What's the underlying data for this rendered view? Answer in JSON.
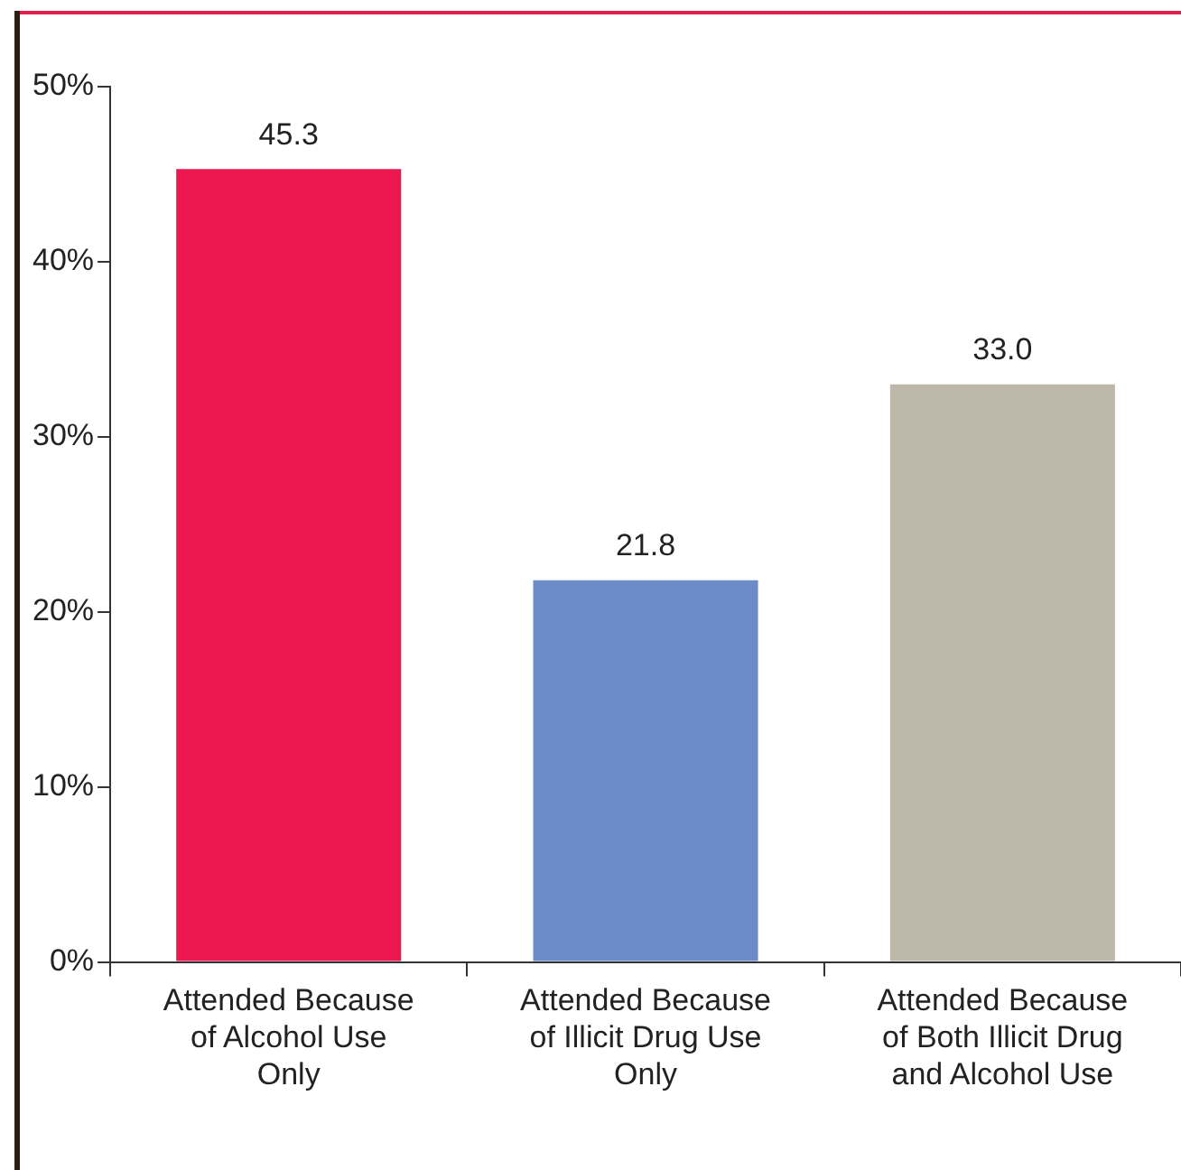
{
  "chart_data": {
    "type": "bar",
    "categories": [
      "Attended Because of Alcohol Use Only",
      "Attended Because of Illicit Drug Use Only",
      "Attended Because of Both Illicit Drug and Alcohol Use"
    ],
    "values": [
      45.3,
      21.8,
      33.0
    ],
    "colors": [
      "#ec174f",
      "#6b8cc6",
      "#bdb7a9"
    ],
    "value_labels": [
      "45.3",
      "21.8",
      "33.0"
    ],
    "ylim": [
      0,
      50
    ],
    "yticks": [
      {
        "value": 0,
        "label": "0%"
      },
      {
        "value": 10,
        "label": "10%"
      },
      {
        "value": 20,
        "label": "20%"
      },
      {
        "value": 30,
        "label": "30%"
      },
      {
        "value": 40,
        "label": "40%"
      },
      {
        "value": 50,
        "label": "50%"
      }
    ],
    "grid": false,
    "legend": false
  }
}
